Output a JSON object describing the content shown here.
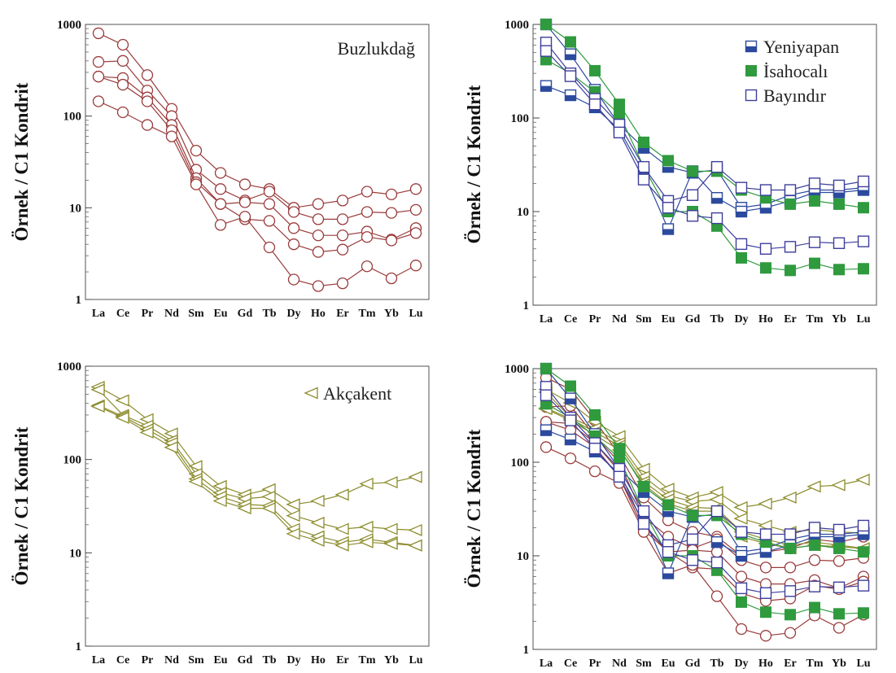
{
  "colors": {
    "buzlukdag": "#9a3b3b",
    "akcakent": "#8c8c2e",
    "yeniyapan": "#2b4a9e",
    "isahocali": "#2f9a3e",
    "bayindir": "#3e3e9c"
  },
  "chart_data": [
    {
      "type": "line",
      "y_axis_title": "Örnek / C1 Kondrit",
      "categories": [
        "La",
        "Ce",
        "Pr",
        "Nd",
        "Sm",
        "Eu",
        "Gd",
        "Tb",
        "Dy",
        "Ho",
        "Er",
        "Tm",
        "Yb",
        "Lu"
      ],
      "y_scale": "log",
      "ylim": [
        1,
        1000
      ],
      "y_ticks": [
        "1",
        "10",
        "100",
        "1000"
      ],
      "legend": {
        "position": "top-right",
        "entries": [
          {
            "label": "Buzlukdağ",
            "marker": "circle-open"
          }
        ]
      },
      "series": [
        {
          "group": "Buzlukdağ",
          "marker": "circle-open",
          "values": [
            800,
            600,
            280,
            120,
            42,
            24,
            18,
            16,
            10,
            11,
            12,
            15,
            14,
            16
          ]
        },
        {
          "group": "Buzlukdağ",
          "marker": "circle-open",
          "values": [
            390,
            400,
            190,
            100,
            26,
            16,
            12,
            15,
            9,
            7.5,
            7.5,
            9,
            8.8,
            9.5
          ]
        },
        {
          "group": "Buzlukdağ",
          "marker": "circle-open",
          "values": [
            270,
            260,
            160,
            80,
            21,
            11,
            11.5,
            11,
            6,
            5,
            5,
            5.5,
            4.5,
            6
          ]
        },
        {
          "group": "Buzlukdağ",
          "marker": "circle-open",
          "values": [
            270,
            220,
            145,
            70,
            19,
            11,
            7.5,
            7.2,
            4,
            3.3,
            3.5,
            4.8,
            4.4,
            5.3
          ]
        },
        {
          "group": "Buzlukdağ",
          "marker": "circle-open",
          "values": [
            145,
            110,
            80,
            60,
            18,
            6.5,
            8,
            3.7,
            1.65,
            1.4,
            1.5,
            2.3,
            1.7,
            2.35
          ]
        }
      ]
    },
    {
      "type": "line",
      "y_axis_title": "Örnek / C1 Kondrit",
      "categories": [
        "La",
        "Ce",
        "Pr",
        "Nd",
        "Sm",
        "Eu",
        "Gd",
        "Tb",
        "Dy",
        "Ho",
        "Er",
        "Tm",
        "Yb",
        "Lu"
      ],
      "y_scale": "log",
      "ylim": [
        1,
        1000
      ],
      "y_ticks": [
        "1",
        "10",
        "100",
        "1000"
      ],
      "legend": {
        "position": "top-right",
        "entries": [
          {
            "label": "Yeniyapan",
            "marker": "square-half"
          },
          {
            "label": "İsahocalı",
            "marker": "square-filled"
          },
          {
            "label": "Bayındır",
            "marker": "square-open"
          }
        ]
      },
      "series": [
        {
          "group": "Yeniyapan",
          "marker": "square-half",
          "values": [
            1000,
            480,
            200,
            85,
            48,
            30,
            26,
            28,
            11,
            12,
            15,
            17,
            17,
            18
          ]
        },
        {
          "group": "Yeniyapan",
          "marker": "square-half",
          "values": [
            220,
            175,
            130,
            75,
            26,
            6.5,
            27,
            14,
            10,
            11,
            13,
            16,
            16,
            17
          ]
        },
        {
          "group": "İsahocalı",
          "marker": "square-filled",
          "values": [
            1000,
            650,
            320,
            140,
            55,
            35,
            27,
            27,
            17,
            14,
            12,
            13,
            12,
            11
          ]
        },
        {
          "group": "İsahocalı",
          "marker": "square-filled",
          "values": [
            420,
            300,
            190,
            110,
            30,
            10,
            10,
            7,
            3.2,
            2.5,
            2.35,
            2.8,
            2.4,
            2.45
          ]
        },
        {
          "group": "Bayındır",
          "marker": "square-open",
          "values": [
            640,
            300,
            160,
            85,
            30,
            13,
            15,
            30,
            18,
            17,
            17,
            20,
            19,
            21
          ]
        },
        {
          "group": "Bayındır",
          "marker": "square-open",
          "values": [
            520,
            280,
            140,
            70,
            22,
            11,
            9,
            8.5,
            4.5,
            4,
            4.2,
            4.7,
            4.6,
            4.8
          ]
        }
      ]
    },
    {
      "type": "line",
      "y_axis_title": "Örnek / C1 Kondrit",
      "categories": [
        "La",
        "Ce",
        "Pr",
        "Nd",
        "Sm",
        "Eu",
        "Gd",
        "Tb",
        "Dy",
        "Ho",
        "Er",
        "Tm",
        "Yb",
        "Lu"
      ],
      "y_scale": "log",
      "ylim": [
        1,
        1000
      ],
      "y_ticks": [
        "1",
        "10",
        "100",
        "1000"
      ],
      "legend": {
        "position": "top-right",
        "entries": [
          {
            "label": "Akçakent",
            "marker": "triangle-left-open"
          }
        ]
      },
      "series": [
        {
          "group": "Akçakent",
          "marker": "triangle-left-open",
          "values": [
            600,
            430,
            270,
            190,
            85,
            52,
            42,
            48,
            33,
            36,
            42,
            55,
            57,
            65
          ]
        },
        {
          "group": "Akçakent",
          "marker": "triangle-left-open",
          "values": [
            560,
            300,
            230,
            160,
            70,
            44,
            38,
            40,
            25,
            21,
            18,
            19,
            18,
            17.5
          ]
        },
        {
          "group": "Akçakent",
          "marker": "triangle-left-open",
          "values": [
            380,
            290,
            210,
            150,
            62,
            40,
            33,
            32,
            18,
            15,
            13,
            14,
            13,
            12
          ]
        },
        {
          "group": "Akçakent",
          "marker": "triangle-left-open",
          "values": [
            370,
            280,
            195,
            135,
            58,
            36,
            30,
            30,
            16,
            13.5,
            12,
            13,
            12.5,
            12
          ]
        }
      ]
    },
    {
      "type": "line",
      "y_axis_title": "Örnek / C1 Kondrit",
      "categories": [
        "La",
        "Ce",
        "Pr",
        "Nd",
        "Sm",
        "Eu",
        "Gd",
        "Tb",
        "Dy",
        "Ho",
        "Er",
        "Tm",
        "Yb",
        "Lu"
      ],
      "y_scale": "log",
      "ylim": [
        1,
        1000
      ],
      "y_ticks": [
        "1",
        "10",
        "100",
        "1000"
      ],
      "combined_from_panels": [
        0,
        1,
        2
      ]
    }
  ]
}
